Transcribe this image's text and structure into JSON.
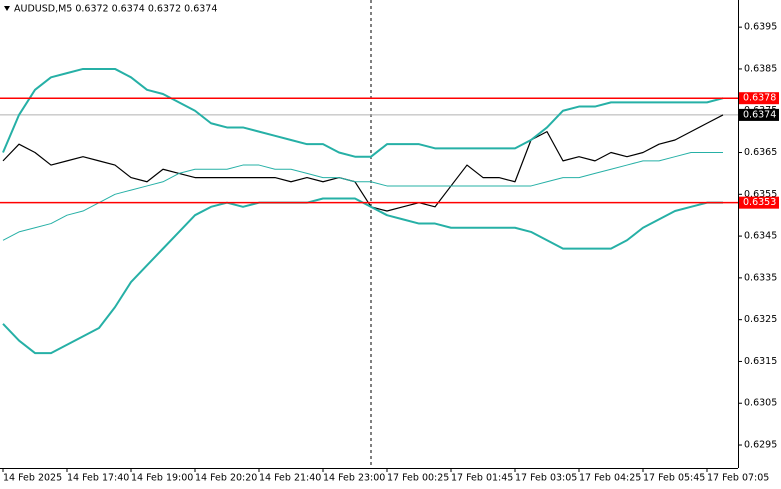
{
  "chart_data": {
    "type": "line",
    "title": "AUDUSD,M5  0.6372 0.6374 0.6372 0.6374",
    "categories": [
      "14 Feb 2025",
      null,
      null,
      null,
      "14 Feb 17:40",
      null,
      null,
      null,
      "14 Feb 19:00",
      null,
      null,
      null,
      "14 Feb 20:20",
      null,
      null,
      null,
      "14 Feb 21:40",
      null,
      null,
      null,
      "14 Feb 23:00",
      null,
      null,
      null,
      "17 Feb 00:25",
      null,
      null,
      null,
      "17 Feb 01:45",
      null,
      null,
      null,
      "17 Feb 03:05",
      null,
      null,
      null,
      "17 Feb 04:25",
      null,
      null,
      null,
      "17 Feb 05:45",
      null,
      null,
      null,
      "17 Feb 07:05",
      null
    ],
    "series": [
      {
        "color": "#000000",
        "width": 1.2,
        "values": [
          0.6363,
          0.6367,
          0.6365,
          0.6362,
          0.6363,
          0.6364,
          0.6363,
          0.6362,
          0.6359,
          0.6358,
          0.6361,
          0.636,
          0.6359,
          0.6359,
          0.6359,
          0.6359,
          0.6359,
          0.6359,
          0.6358,
          0.6359,
          0.6358,
          0.6359,
          0.6358,
          0.6352,
          0.6351,
          0.6352,
          0.6353,
          0.6352,
          0.6357,
          0.6362,
          0.6359,
          0.6359,
          0.6358,
          0.6368,
          0.637,
          0.6363,
          0.6364,
          0.6363,
          0.6365,
          0.6364,
          0.6365,
          0.6367,
          0.6368,
          0.637,
          0.6372,
          0.6374
        ]
      },
      {
        "color": "#26b0a6",
        "width": 2,
        "values": [
          0.6365,
          0.6374,
          0.638,
          0.6383,
          0.6384,
          0.6385,
          0.6385,
          0.6385,
          0.6383,
          0.638,
          0.6379,
          0.6377,
          0.6375,
          0.6372,
          0.6371,
          0.6371,
          0.637,
          0.6369,
          0.6368,
          0.6367,
          0.6367,
          0.6365,
          0.6364,
          0.6364,
          0.6367,
          0.6367,
          0.6367,
          0.6366,
          0.6366,
          0.6366,
          0.6366,
          0.6366,
          0.6366,
          0.6368,
          0.6371,
          0.6375,
          0.6376,
          0.6376,
          0.6377,
          0.6377,
          0.6377,
          0.6377,
          0.6377,
          0.6377,
          0.6377,
          0.6378
        ]
      },
      {
        "color": "#26b0a6",
        "width": 2,
        "values": [
          0.6324,
          0.632,
          0.6317,
          0.6317,
          0.6319,
          0.6321,
          0.6323,
          0.6328,
          0.6334,
          0.6338,
          0.6342,
          0.6346,
          0.635,
          0.6352,
          0.6353,
          0.6352,
          0.6353,
          0.6353,
          0.6353,
          0.6353,
          0.6354,
          0.6354,
          0.6354,
          0.6352,
          0.635,
          0.6349,
          0.6348,
          0.6348,
          0.6347,
          0.6347,
          0.6347,
          0.6347,
          0.6347,
          0.6346,
          0.6344,
          0.6342,
          0.6342,
          0.6342,
          0.6342,
          0.6344,
          0.6347,
          0.6349,
          0.6351,
          0.6352,
          0.6353,
          0.6353
        ]
      },
      {
        "color": "#26b0a6",
        "width": 1,
        "values": [
          0.6344,
          0.6346,
          0.6347,
          0.6348,
          0.635,
          0.6351,
          0.6353,
          0.6355,
          0.6356,
          0.6357,
          0.6358,
          0.636,
          0.6361,
          0.6361,
          0.6361,
          0.6362,
          0.6362,
          0.6361,
          0.6361,
          0.636,
          0.6359,
          0.6359,
          0.6358,
          0.6358,
          0.6357,
          0.6357,
          0.6357,
          0.6357,
          0.6357,
          0.6357,
          0.6357,
          0.6357,
          0.6357,
          0.6357,
          0.6358,
          0.6359,
          0.6359,
          0.636,
          0.6361,
          0.6362,
          0.6363,
          0.6363,
          0.6364,
          0.6365,
          0.6365,
          0.6365
        ]
      }
    ],
    "ylim": [
      0.62895,
      0.64015
    ],
    "yticks": [
      0.6395,
      0.6385,
      0.6375,
      0.6365,
      0.6355,
      0.6345,
      0.6335,
      0.6325,
      0.6315,
      0.6305,
      0.6295
    ],
    "levels": [
      {
        "value": 0.6378,
        "color": "#ff0000"
      },
      {
        "value": 0.6353,
        "color": "#ff0000"
      }
    ],
    "last_price": {
      "value": 0.6374,
      "color": "#000000"
    }
  }
}
